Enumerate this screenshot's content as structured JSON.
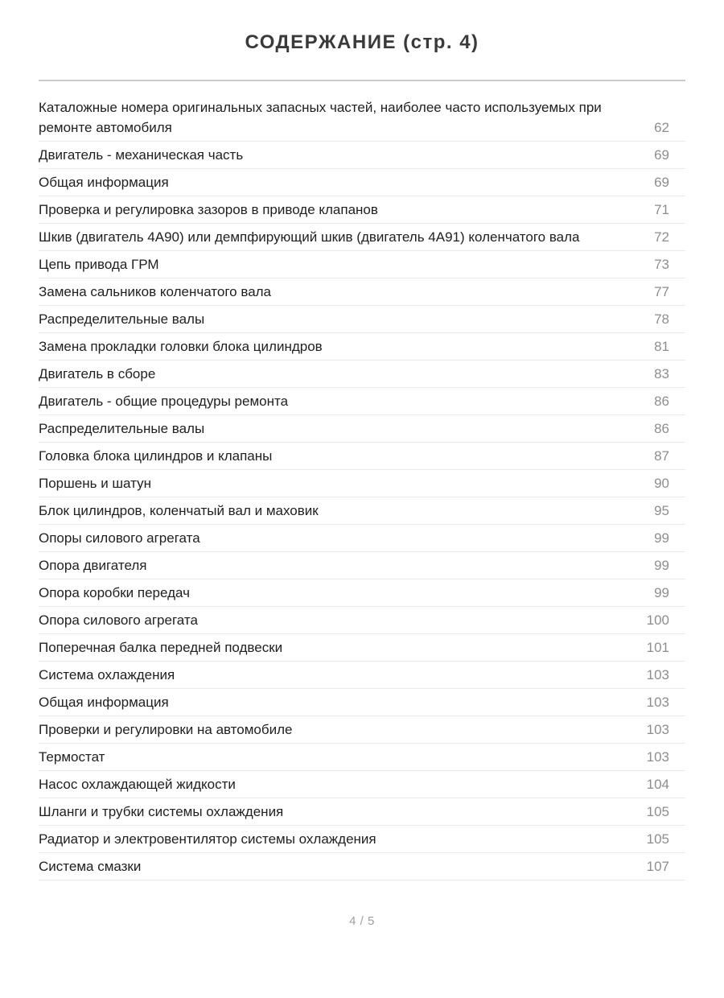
{
  "header": {
    "title": "СОДЕРЖАНИЕ (стр. 4)"
  },
  "toc": {
    "entries": [
      {
        "title": "Каталожные номера оригинальных запасных частей, наиболее часто используемых при ремонте автомобиля",
        "page": "62"
      },
      {
        "title": "Двигатель - механическая часть",
        "page": "69"
      },
      {
        "title": "Общая информация",
        "page": "69"
      },
      {
        "title": "Проверка и регулировка зазоров в приводе клапанов",
        "page": "71"
      },
      {
        "title": "Шкив (двигатель 4А90) или демпфирующий шкив (двигатель 4А91) коленчатого вала",
        "page": "72"
      },
      {
        "title": "Цепь привода ГРМ",
        "page": "73"
      },
      {
        "title": "Замена сальников коленчатого вала",
        "page": "77"
      },
      {
        "title": "Распределительные валы",
        "page": "78"
      },
      {
        "title": "Замена прокладки головки блока цилиндров",
        "page": "81"
      },
      {
        "title": "Двигатель в сборе",
        "page": "83"
      },
      {
        "title": "Двигатель - общие процедуры ремонта",
        "page": "86"
      },
      {
        "title": "Распределительные валы",
        "page": "86"
      },
      {
        "title": "Головка блока цилиндров и клапаны",
        "page": "87"
      },
      {
        "title": "Поршень и шатун",
        "page": "90"
      },
      {
        "title": "Блок цилиндров, коленчатый вал и маховик",
        "page": "95"
      },
      {
        "title": "Опоры силового агрегата",
        "page": "99"
      },
      {
        "title": "Опора двигателя",
        "page": "99"
      },
      {
        "title": "Опора коробки передач",
        "page": "99"
      },
      {
        "title": "Опора силового агрегата",
        "page": "100"
      },
      {
        "title": "Поперечная балка передней подвески",
        "page": "101"
      },
      {
        "title": "Система охлаждения",
        "page": "103"
      },
      {
        "title": "Общая информация",
        "page": "103"
      },
      {
        "title": "Проверки и регулировки на автомобиле",
        "page": "103"
      },
      {
        "title": "Термостат",
        "page": "103"
      },
      {
        "title": "Насос охлаждающей жидкости",
        "page": "104"
      },
      {
        "title": "Шланги и трубки системы охлаждения",
        "page": "105"
      },
      {
        "title": "Радиатор и электровентилятор системы охлаждения",
        "page": "105"
      },
      {
        "title": "Система смазки",
        "page": "107"
      }
    ]
  },
  "footer": {
    "page_indicator": "4 / 5"
  },
  "colors": {
    "background": "#ffffff",
    "title_text": "#3a3a3a",
    "entry_text": "#212121",
    "page_number": "#8e8e8e",
    "title_divider": "#c9c9c9",
    "row_separator": "#e9e9e9",
    "footer_text": "#9e9e9e"
  }
}
